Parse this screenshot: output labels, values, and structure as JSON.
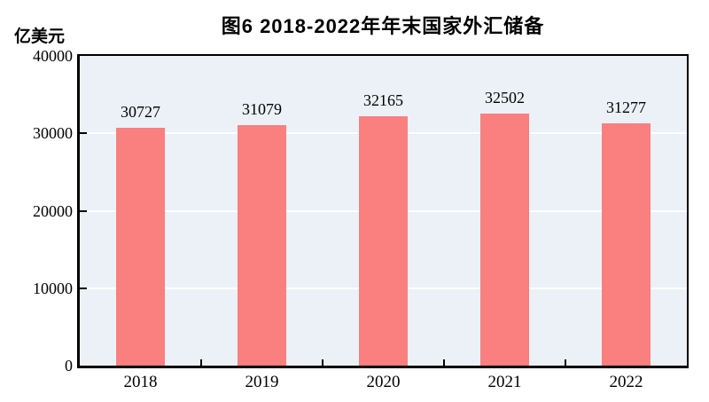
{
  "figure": {
    "title": "图6  2018-2022年年末国家外汇储备",
    "y_unit_label": "亿美元"
  },
  "chart_data": {
    "type": "bar",
    "title": "图6  2018-2022年年末国家外汇储备",
    "ylabel": "亿美元",
    "xlabel": "",
    "categories": [
      "2018",
      "2019",
      "2020",
      "2021",
      "2022"
    ],
    "values": [
      30727,
      31079,
      32165,
      32502,
      31277
    ],
    "data_labels": [
      "30727",
      "31079",
      "32165",
      "32502",
      "31277"
    ],
    "ylim": [
      0,
      40000
    ],
    "yticks": [
      0,
      10000,
      20000,
      30000,
      40000
    ],
    "grid": "horizontal",
    "legend_position": "none",
    "bar_color": "#FA7F7F",
    "plot_background": "#ECF1F7",
    "gridline_color": "#FFFFFF",
    "axis_color": "#000000",
    "text_color": "#000000",
    "page_background": "#FFFFFF"
  }
}
